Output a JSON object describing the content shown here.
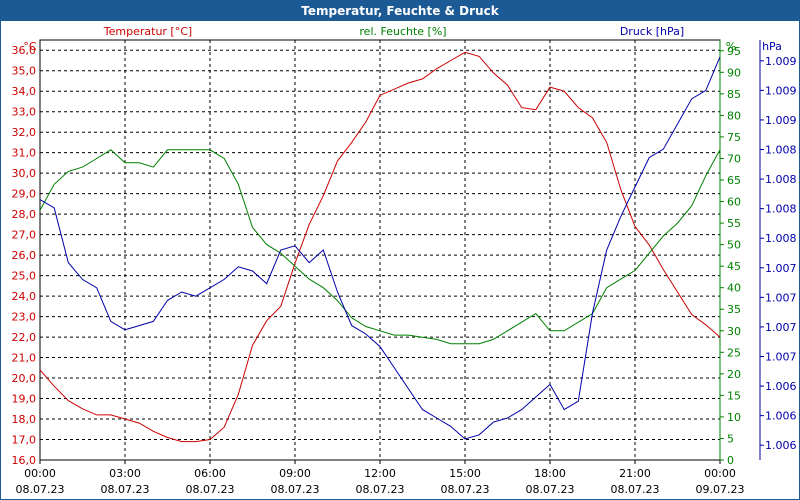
{
  "chart_data": {
    "type": "line",
    "title": "Temperatur, Feuchte & Druck",
    "colors": {
      "temperature": "#cc0000",
      "humidity": "#008000",
      "pressure": "#0000aa",
      "title_bg": "#1c5a96"
    },
    "x_ticks": [
      {
        "time": "00:00",
        "date": "08.07.23"
      },
      {
        "time": "03:00",
        "date": "08.07.23"
      },
      {
        "time": "06:00",
        "date": "08.07.23"
      },
      {
        "time": "09:00",
        "date": "08.07.23"
      },
      {
        "time": "12:00",
        "date": "08.07.23"
      },
      {
        "time": "15:00",
        "date": "08.07.23"
      },
      {
        "time": "18:00",
        "date": "08.07.23"
      },
      {
        "time": "21:00",
        "date": "08.07.23"
      },
      {
        "time": "00:00",
        "date": "09.07.23"
      }
    ],
    "xlim_hours": [
      0,
      24
    ],
    "axes": {
      "temperature": {
        "label": "Temperatur [°C]",
        "unit": "°C",
        "ylim": [
          16,
          36.5
        ],
        "ticks": [
          "16,0",
          "17,0",
          "18,0",
          "19,0",
          "20,0",
          "21,0",
          "22,0",
          "23,0",
          "24,0",
          "25,0",
          "26,0",
          "27,0",
          "28,0",
          "29,0",
          "30,0",
          "31,0",
          "32,0",
          "33,0",
          "34,0",
          "35,0",
          "36,0"
        ]
      },
      "humidity": {
        "label": "rel. Feuchte [%]",
        "unit": "%",
        "ylim": [
          0,
          97.5
        ],
        "ticks": [
          "0",
          "5",
          "10",
          "15",
          "20",
          "25",
          "30",
          "35",
          "40",
          "45",
          "50",
          "55",
          "60",
          "65",
          "70",
          "75",
          "80",
          "85",
          "90",
          "95"
        ]
      },
      "pressure": {
        "label": "Druck [hPa]",
        "unit": "hPa",
        "ticks": [
          "1.006",
          "1.006",
          "1.006",
          "1.007",
          "1.007",
          "1.007",
          "1.007",
          "1.008",
          "1.008",
          "1.008",
          "1.008",
          "1.009",
          "1.009",
          "1.009"
        ]
      }
    },
    "series": [
      {
        "name": "Temperatur [°C]",
        "axis": "temperature",
        "x": [
          0,
          0.5,
          1,
          1.5,
          2,
          2.5,
          3,
          3.5,
          4,
          4.5,
          5,
          5.5,
          6,
          6.5,
          7,
          7.5,
          8,
          8.5,
          9,
          9.5,
          10,
          10.5,
          11,
          11.5,
          12,
          12.5,
          13,
          13.5,
          14,
          14.5,
          15,
          15.5,
          16,
          16.5,
          17,
          17.5,
          18,
          18.5,
          19,
          19.5,
          20,
          20.5,
          21,
          21.5,
          22,
          22.5,
          23,
          23.5,
          24
        ],
        "y": [
          20.4,
          19.6,
          18.9,
          18.5,
          18.2,
          18.2,
          18.0,
          17.8,
          17.4,
          17.1,
          16.9,
          16.9,
          17.0,
          17.6,
          19.2,
          21.6,
          22.8,
          23.5,
          25.6,
          27.5,
          28.9,
          30.6,
          31.5,
          32.5,
          33.8,
          34.1,
          34.4,
          34.6,
          35.1,
          35.5,
          35.9,
          35.7,
          34.9,
          34.3,
          33.2,
          33.1,
          34.2,
          34.0,
          33.2,
          32.7,
          31.5,
          29.2,
          27.4,
          26.5,
          25.3,
          24.2,
          23.1,
          22.6,
          22.0
        ]
      },
      {
        "name": "rel. Feuchte [%]",
        "axis": "humidity",
        "x": [
          0,
          0.5,
          1,
          1.5,
          2,
          2.5,
          3,
          3.5,
          4,
          4.5,
          5,
          5.5,
          6,
          6.5,
          7,
          7.5,
          8,
          8.5,
          9,
          9.5,
          10,
          10.5,
          11,
          11.5,
          12,
          12.5,
          13,
          13.5,
          14,
          14.5,
          15,
          15.5,
          16,
          16.5,
          17,
          17.5,
          18,
          18.5,
          19,
          19.5,
          20,
          20.5,
          21,
          21.5,
          22,
          22.5,
          23,
          23.5,
          24
        ],
        "y": [
          58,
          64,
          67,
          68,
          70,
          72,
          69,
          69,
          68,
          72,
          72,
          72,
          72,
          70,
          64,
          54,
          50,
          48,
          45,
          42,
          40,
          37,
          33,
          31,
          30,
          29,
          29,
          28.5,
          28,
          27,
          27,
          27,
          28,
          30,
          32,
          34,
          30,
          30,
          32,
          34,
          40,
          42,
          44,
          48,
          52,
          55,
          59,
          66,
          72
        ]
      },
      {
        "name": "Druck [hPa]",
        "axis": "pressure",
        "x": [
          0,
          0.5,
          1,
          1.5,
          2,
          2.5,
          3,
          3.5,
          4,
          4.5,
          5,
          5.5,
          6,
          6.5,
          7,
          7.5,
          8,
          8.5,
          9,
          9.5,
          10,
          10.5,
          11,
          11.5,
          12,
          12.5,
          13,
          13.5,
          14,
          14.5,
          15,
          15.5,
          16,
          16.5,
          17,
          17.5,
          18,
          18.5,
          19,
          19.5,
          20,
          20.5,
          21,
          21.5,
          22,
          22.5,
          23,
          23.5,
          24
        ],
        "y": [
          0.62,
          0.6,
          0.47,
          0.43,
          0.41,
          0.33,
          0.31,
          0.32,
          0.33,
          0.38,
          0.4,
          0.39,
          0.41,
          0.43,
          0.46,
          0.45,
          0.42,
          0.5,
          0.51,
          0.47,
          0.5,
          0.4,
          0.32,
          0.3,
          0.27,
          0.22,
          0.17,
          0.12,
          0.1,
          0.08,
          0.05,
          0.06,
          0.09,
          0.1,
          0.12,
          0.15,
          0.18,
          0.12,
          0.14,
          0.35,
          0.5,
          0.58,
          0.65,
          0.72,
          0.74,
          0.8,
          0.86,
          0.88,
          0.96
        ]
      }
    ]
  }
}
